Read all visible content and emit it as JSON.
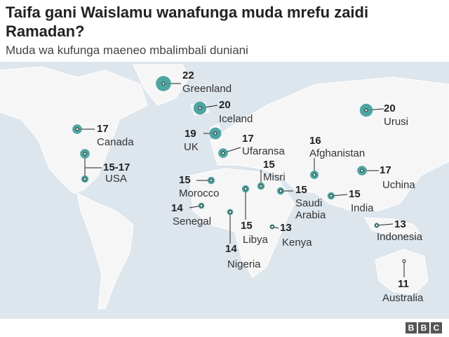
{
  "title": "Taifa gani Waislamu wanafunga muda mrefu zaidi Ramadan?",
  "subtitle": "Muda wa kufunga maeneo mbalimbali duniani",
  "logo": [
    "B",
    "B",
    "C"
  ],
  "locations": [
    {
      "name": "Greenland",
      "hours": 22
    },
    {
      "name": "Iceland",
      "hours": 20
    },
    {
      "name": "Canada",
      "hours": 17
    },
    {
      "name": "USA",
      "hours": [
        17,
        15
      ],
      "hours_label": "15-17"
    },
    {
      "name": "UK",
      "hours": 19
    },
    {
      "name": "Ufaransa",
      "hours": 17
    },
    {
      "name": "Afghanistan",
      "hours": 16
    },
    {
      "name": "Urusi",
      "hours": 20
    },
    {
      "name": "Uchina",
      "hours": 17
    },
    {
      "name": "Morocco",
      "hours": 15
    },
    {
      "name": "Misri",
      "hours": 15
    },
    {
      "name": "Saudi Arabia",
      "hours": 15
    },
    {
      "name": "India",
      "hours": 15
    },
    {
      "name": "Senegal",
      "hours": 14
    },
    {
      "name": "Libya",
      "hours": 15
    },
    {
      "name": "Nigeria",
      "hours": 14
    },
    {
      "name": "Kenya",
      "hours": 13
    },
    {
      "name": "Indonesia",
      "hours": 13
    },
    {
      "name": "Australia",
      "hours": 11
    }
  ]
}
